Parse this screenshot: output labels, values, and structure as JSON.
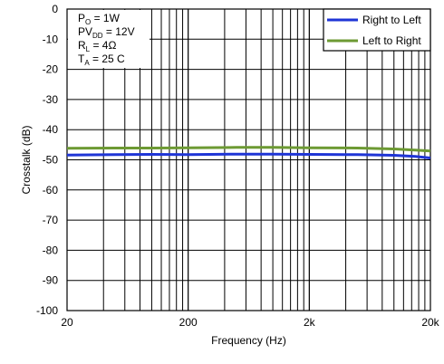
{
  "chart_data": {
    "type": "line",
    "xlabel": "Frequency (Hz)",
    "ylabel": "Crosstalk (dB)",
    "x_scale": "log",
    "xlim": [
      20,
      20000
    ],
    "ylim": [
      -100,
      0
    ],
    "x_tick_labels": [
      {
        "value": 20,
        "label": "20"
      },
      {
        "value": 200,
        "label": "200"
      },
      {
        "value": 2000,
        "label": "2k"
      },
      {
        "value": 20000,
        "label": "20k"
      }
    ],
    "y_tick_labels": [
      {
        "value": 0,
        "label": "0"
      },
      {
        "value": -10,
        "label": "-10"
      },
      {
        "value": -20,
        "label": "-20"
      },
      {
        "value": -30,
        "label": "-30"
      },
      {
        "value": -40,
        "label": "-40"
      },
      {
        "value": -50,
        "label": "-50"
      },
      {
        "value": -60,
        "label": "-60"
      },
      {
        "value": -70,
        "label": "-70"
      },
      {
        "value": -80,
        "label": "-80"
      },
      {
        "value": -90,
        "label": "-90"
      },
      {
        "value": -100,
        "label": "-100"
      }
    ],
    "grid": true,
    "legend_position": "top-right",
    "annotations": [
      {
        "main": "P",
        "sub": "O",
        "rest": " = 1W"
      },
      {
        "main": "PV",
        "sub": "DD",
        "rest": " = 12V"
      },
      {
        "main": "R",
        "sub": "L",
        "rest": " = 4Ω"
      },
      {
        "main": "T",
        "sub": "A",
        "rest": " = 25 C"
      }
    ],
    "series": [
      {
        "name": "Right to Left",
        "color": "#1f35d6",
        "x": [
          20,
          50,
          100,
          200,
          500,
          1000,
          2000,
          5000,
          10000,
          15000,
          20000
        ],
        "y": [
          -48.4,
          -48.3,
          -48.2,
          -48.3,
          -48.1,
          -48.1,
          -48.2,
          -48.3,
          -48.5,
          -48.9,
          -49.4
        ]
      },
      {
        "name": "Left to Right",
        "color": "#6d9a33",
        "x": [
          20,
          50,
          100,
          200,
          500,
          1000,
          2000,
          5000,
          10000,
          15000,
          20000
        ],
        "y": [
          -46.2,
          -46.1,
          -46.1,
          -46.0,
          -45.9,
          -45.9,
          -46.0,
          -46.1,
          -46.4,
          -46.8,
          -47.1
        ]
      }
    ]
  }
}
